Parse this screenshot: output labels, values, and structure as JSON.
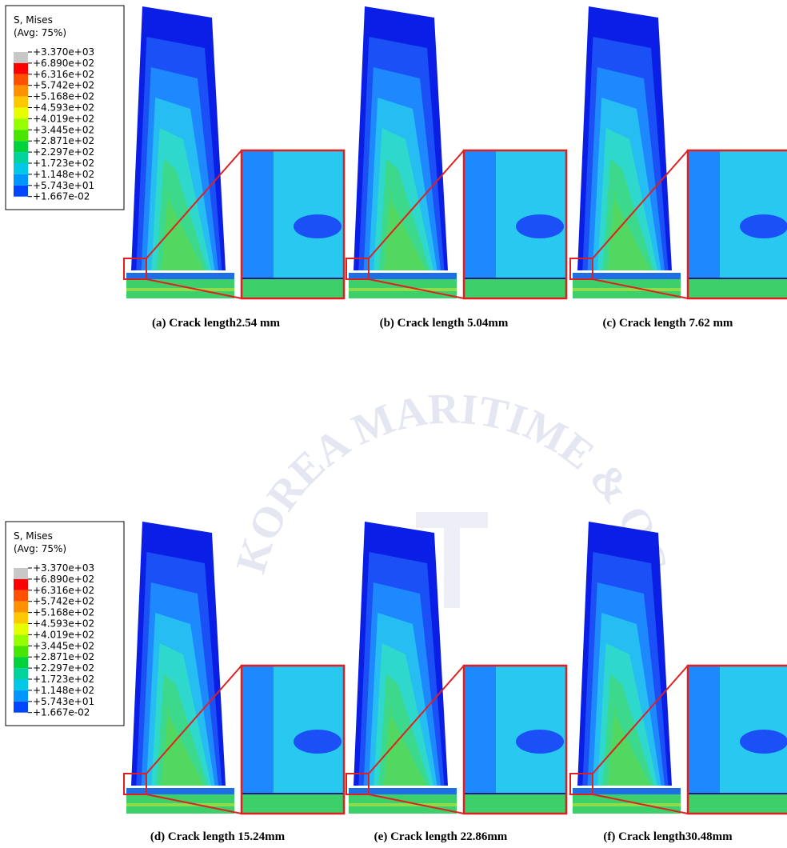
{
  "legends": [
    {
      "title": "S, Mises",
      "subtitle": "(Avg: 75%)",
      "labels": [
        "+3.370e+03",
        "+6.890e+02",
        "+6.316e+02",
        "+5.742e+02",
        "+5.168e+02",
        "+4.593e+02",
        "+4.019e+02",
        "+3.445e+02",
        "+2.871e+02",
        "+2.297e+02",
        "+1.723e+02",
        "+1.148e+02",
        "+5.743e+01",
        "+1.667e-02"
      ]
    },
    {
      "title": "S, Mises",
      "subtitle": "(Avg: 75%)",
      "labels": [
        "+3.370e+03",
        "+6.890e+02",
        "+6.316e+02",
        "+5.742e+02",
        "+5.168e+02",
        "+4.593e+02",
        "+4.019e+02",
        "+3.445e+02",
        "+2.871e+02",
        "+2.297e+02",
        "+1.723e+02",
        "+1.148e+02",
        "+5.743e+01",
        "+1.667e-02"
      ]
    }
  ],
  "panels": [
    {
      "caption": "(a)   Crack length2.54 mm"
    },
    {
      "caption": "(b) Crack length 5.04mm"
    },
    {
      "caption": "(c) Crack length 7.62 mm"
    },
    {
      "caption": "(d) Crack length 15.24mm"
    },
    {
      "caption": "(e) Crack length 22.86mm"
    },
    {
      "caption": "(f) Crack length30.48mm"
    }
  ],
  "watermark": "KOREA MARITIME & OCEAN UNIVERSITY"
}
